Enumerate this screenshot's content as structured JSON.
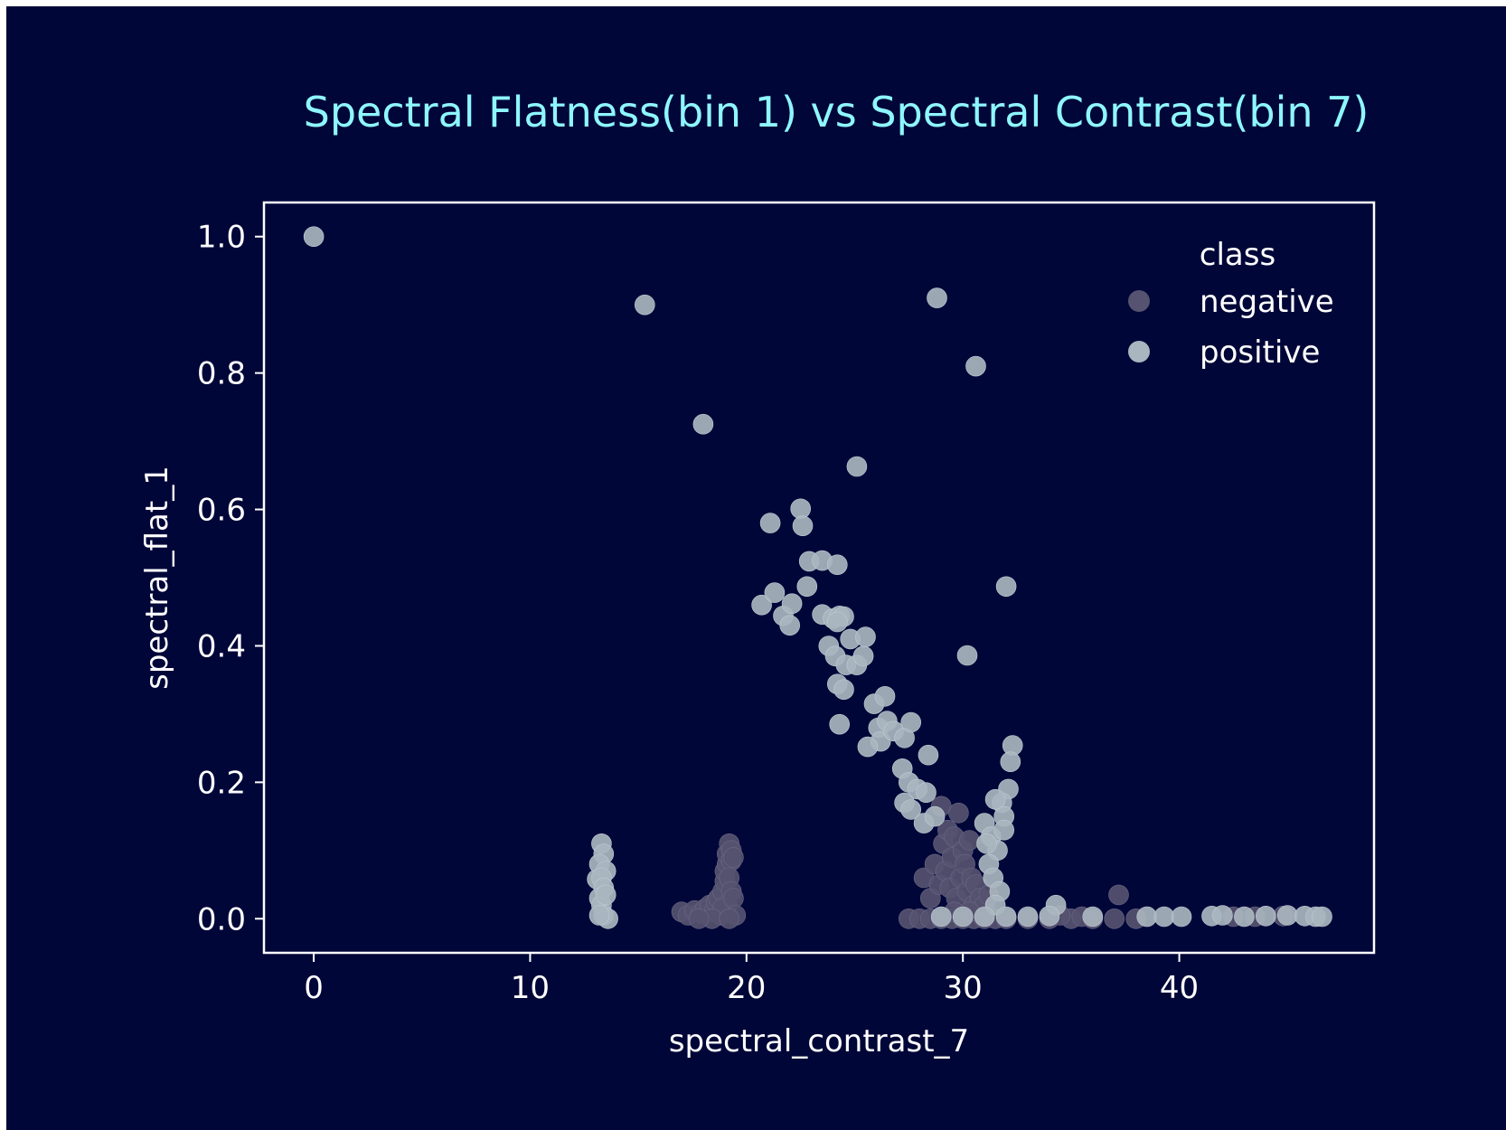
{
  "colors": {
    "background": "#000638",
    "title": "#8ef6ff",
    "text": "#ffffff",
    "negative": "#55536f",
    "positive": "#a9b5bf"
  },
  "chart_data": {
    "type": "scatter",
    "title": "Spectral Flatness(bin 1) vs Spectral Contrast(bin 7)",
    "xlabel": "spectral_contrast_7",
    "ylabel": "spectral_flat_1",
    "xlim": [
      -2.3,
      49.0
    ],
    "ylim": [
      -0.05,
      1.05
    ],
    "xticks": [
      0,
      10,
      20,
      30,
      40
    ],
    "yticks": [
      0.0,
      0.2,
      0.4,
      0.6,
      0.8,
      1.0
    ],
    "xtick_labels": [
      "0",
      "10",
      "20",
      "30",
      "40"
    ],
    "ytick_labels": [
      "0.0",
      "0.2",
      "0.4",
      "0.6",
      "0.8",
      "1.0"
    ],
    "grid": false,
    "legend": {
      "title": "class",
      "position": "top-right"
    },
    "series": [
      {
        "name": "negative",
        "color": "#55536f",
        "points": [
          [
            17.0,
            0.01
          ],
          [
            17.3,
            0.005
          ],
          [
            17.6,
            0.012
          ],
          [
            17.9,
            0.008
          ],
          [
            18.1,
            0.015
          ],
          [
            18.3,
            0.02
          ],
          [
            18.5,
            0.01
          ],
          [
            18.6,
            0.025
          ],
          [
            18.7,
            0.03
          ],
          [
            18.8,
            0.005
          ],
          [
            18.9,
            0.04
          ],
          [
            19.0,
            0.055
          ],
          [
            19.0,
            0.07
          ],
          [
            19.1,
            0.08
          ],
          [
            19.1,
            0.095
          ],
          [
            19.2,
            0.11
          ],
          [
            19.3,
            0.1
          ],
          [
            19.3,
            0.085
          ],
          [
            19.4,
            0.09
          ],
          [
            19.2,
            0.06
          ],
          [
            19.3,
            0.04
          ],
          [
            19.1,
            0.02
          ],
          [
            18.9,
            0.015
          ],
          [
            19.4,
            0.03
          ],
          [
            19.5,
            0.005
          ],
          [
            18.4,
            0.0
          ],
          [
            19.2,
            0.0
          ],
          [
            17.8,
            0.0
          ],
          [
            27.5,
            0.0
          ],
          [
            28.0,
            0.0
          ],
          [
            28.5,
            0.0
          ],
          [
            29.0,
            0.0
          ],
          [
            29.5,
            0.0
          ],
          [
            30.0,
            0.0
          ],
          [
            30.5,
            0.0
          ],
          [
            31.0,
            0.0
          ],
          [
            31.5,
            0.0
          ],
          [
            32.0,
            0.0
          ],
          [
            33.0,
            0.0
          ],
          [
            34.0,
            0.0
          ],
          [
            35.0,
            0.0
          ],
          [
            36.0,
            0.0
          ],
          [
            37.0,
            0.0
          ],
          [
            38.0,
            0.0
          ],
          [
            28.2,
            0.06
          ],
          [
            28.5,
            0.03
          ],
          [
            28.7,
            0.08
          ],
          [
            28.9,
            0.05
          ],
          [
            29.0,
            0.165
          ],
          [
            29.1,
            0.11
          ],
          [
            29.2,
            0.07
          ],
          [
            29.3,
            0.13
          ],
          [
            29.4,
            0.045
          ],
          [
            29.5,
            0.09
          ],
          [
            29.6,
            0.12
          ],
          [
            29.7,
            0.03
          ],
          [
            29.8,
            0.155
          ],
          [
            29.9,
            0.06
          ],
          [
            30.0,
            0.1
          ],
          [
            30.1,
            0.08
          ],
          [
            30.2,
            0.04
          ],
          [
            30.3,
            0.115
          ],
          [
            30.4,
            0.06
          ],
          [
            30.5,
            0.02
          ],
          [
            30.6,
            0.05
          ],
          [
            30.8,
            0.03
          ],
          [
            31.0,
            0.02
          ],
          [
            31.2,
            0.035
          ],
          [
            29.6,
            0.01
          ],
          [
            30.3,
            0.01
          ],
          [
            37.2,
            0.035
          ],
          [
            34.5,
            0.005
          ],
          [
            35.5,
            0.003
          ],
          [
            42.5,
            0.003
          ],
          [
            43.5,
            0.003
          ],
          [
            44.8,
            0.004
          ]
        ]
      },
      {
        "name": "positive",
        "color": "#a9b5bf",
        "points": [
          [
            0.0,
            1.0
          ],
          [
            15.3,
            0.9
          ],
          [
            18.0,
            0.725
          ],
          [
            28.8,
            0.91
          ],
          [
            30.6,
            0.81
          ],
          [
            25.1,
            0.663
          ],
          [
            21.1,
            0.58
          ],
          [
            22.5,
            0.601
          ],
          [
            22.6,
            0.576
          ],
          [
            22.9,
            0.524
          ],
          [
            23.5,
            0.525
          ],
          [
            24.2,
            0.519
          ],
          [
            22.8,
            0.487
          ],
          [
            32.0,
            0.487
          ],
          [
            20.7,
            0.46
          ],
          [
            21.3,
            0.478
          ],
          [
            21.7,
            0.444
          ],
          [
            22.1,
            0.462
          ],
          [
            22.0,
            0.43
          ],
          [
            23.5,
            0.446
          ],
          [
            24.0,
            0.44
          ],
          [
            24.3,
            0.444
          ],
          [
            24.5,
            0.443
          ],
          [
            24.2,
            0.435
          ],
          [
            30.2,
            0.386
          ],
          [
            23.8,
            0.4
          ],
          [
            24.1,
            0.385
          ],
          [
            24.6,
            0.372
          ],
          [
            24.8,
            0.41
          ],
          [
            25.1,
            0.372
          ],
          [
            25.4,
            0.385
          ],
          [
            25.5,
            0.413
          ],
          [
            24.2,
            0.344
          ],
          [
            24.5,
            0.336
          ],
          [
            24.3,
            0.285
          ],
          [
            25.9,
            0.315
          ],
          [
            26.4,
            0.326
          ],
          [
            26.1,
            0.28
          ],
          [
            26.5,
            0.29
          ],
          [
            26.2,
            0.26
          ],
          [
            25.6,
            0.252
          ],
          [
            26.8,
            0.275
          ],
          [
            27.3,
            0.265
          ],
          [
            27.6,
            0.288
          ],
          [
            32.3,
            0.254
          ],
          [
            32.2,
            0.23
          ],
          [
            27.2,
            0.22
          ],
          [
            27.5,
            0.2
          ],
          [
            27.3,
            0.17
          ],
          [
            27.9,
            0.19
          ],
          [
            27.6,
            0.16
          ],
          [
            28.4,
            0.24
          ],
          [
            28.3,
            0.185
          ],
          [
            28.2,
            0.14
          ],
          [
            28.7,
            0.15
          ],
          [
            32.1,
            0.19
          ],
          [
            31.8,
            0.17
          ],
          [
            31.9,
            0.15
          ],
          [
            31.5,
            0.175
          ],
          [
            31.0,
            0.14
          ],
          [
            31.3,
            0.12
          ],
          [
            31.6,
            0.1
          ],
          [
            31.2,
            0.08
          ],
          [
            31.4,
            0.06
          ],
          [
            31.7,
            0.04
          ],
          [
            31.5,
            0.02
          ],
          [
            31.9,
            0.13
          ],
          [
            31.1,
            0.11
          ],
          [
            13.1,
            0.058
          ],
          [
            13.3,
            0.11
          ],
          [
            13.4,
            0.095
          ],
          [
            13.2,
            0.08
          ],
          [
            13.5,
            0.07
          ],
          [
            13.3,
            0.06
          ],
          [
            13.4,
            0.045
          ],
          [
            13.2,
            0.03
          ],
          [
            13.3,
            0.02
          ],
          [
            13.5,
            0.035
          ],
          [
            13.4,
            0.005
          ],
          [
            13.6,
            0.0
          ],
          [
            13.2,
            0.005
          ],
          [
            29.0,
            0.003
          ],
          [
            30.0,
            0.003
          ],
          [
            31.0,
            0.003
          ],
          [
            32.0,
            0.003
          ],
          [
            33.0,
            0.003
          ],
          [
            34.3,
            0.02
          ],
          [
            34.0,
            0.004
          ],
          [
            36.0,
            0.003
          ],
          [
            38.5,
            0.003
          ],
          [
            39.3,
            0.003
          ],
          [
            40.1,
            0.003
          ],
          [
            41.5,
            0.004
          ],
          [
            42.0,
            0.005
          ],
          [
            43.0,
            0.003
          ],
          [
            44.0,
            0.004
          ],
          [
            45.0,
            0.005
          ],
          [
            45.8,
            0.004
          ],
          [
            46.3,
            0.003
          ],
          [
            46.6,
            0.003
          ]
        ]
      }
    ]
  }
}
